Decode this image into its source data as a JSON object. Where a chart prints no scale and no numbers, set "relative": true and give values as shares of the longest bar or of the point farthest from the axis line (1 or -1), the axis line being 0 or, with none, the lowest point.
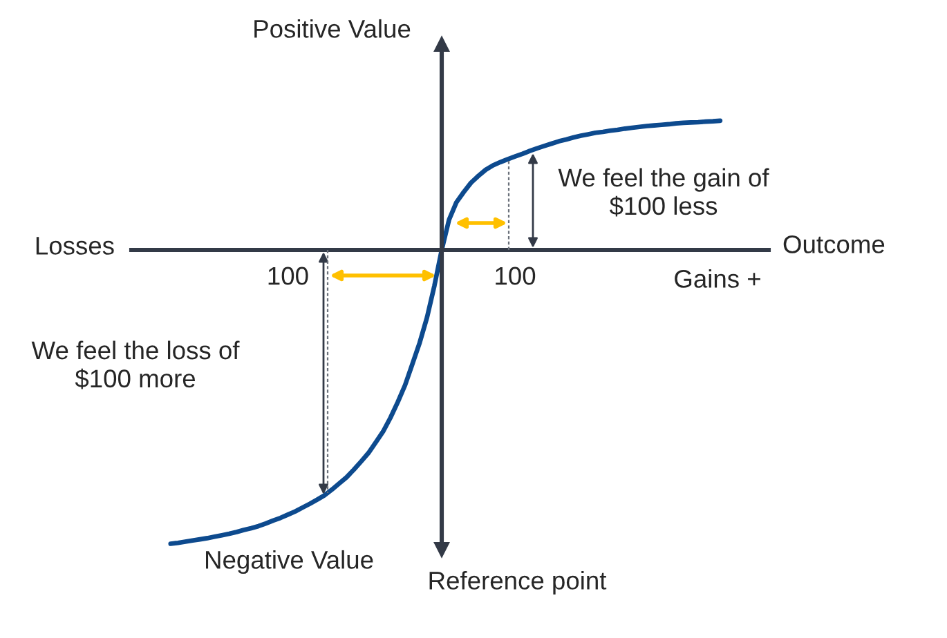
{
  "chart_data": {
    "type": "line",
    "relative": true,
    "xlabel": "Outcome",
    "ylabel": "Positive Value",
    "tick_labels": "x",
    "categories": [
      null,
      null,
      null,
      null,
      null,
      null,
      null,
      null,
      null,
      null,
      null,
      null,
      null,
      null,
      null,
      null,
      "100",
      null,
      null,
      null,
      null,
      null,
      null,
      null,
      null,
      null,
      null,
      null,
      null,
      null,
      null,
      null,
      null,
      null,
      null,
      null,
      null,
      null,
      null,
      null,
      null,
      null,
      null,
      null,
      null,
      null,
      null,
      "100",
      null,
      null,
      null,
      null,
      null,
      null,
      null,
      null,
      null,
      null,
      null,
      null,
      null,
      null,
      null,
      null,
      null,
      null,
      null,
      null,
      null,
      null,
      null,
      null,
      null,
      null,
      null,
      null
    ],
    "series": [
      {
        "color": "#0d4a8e",
        "values": [
          -1,
          -0.997,
          -0.993,
          -0.989,
          -0.985,
          -0.981,
          -0.976,
          -0.971,
          -0.966,
          -0.96,
          -0.953,
          -0.947,
          -0.94,
          -0.931,
          -0.921,
          -0.912,
          -0.901,
          -0.89,
          -0.877,
          -0.864,
          -0.85,
          -0.835,
          -0.816,
          -0.795,
          -0.774,
          -0.748,
          -0.72,
          -0.691,
          -0.655,
          -0.618,
          -0.571,
          -0.518,
          -0.46,
          -0.388,
          -0.315,
          -0.229,
          -0.122,
          0,
          0.103,
          0.162,
          0.197,
          0.229,
          0.252,
          0.273,
          0.288,
          0.299,
          0.309,
          0.318,
          0.327,
          0.337,
          0.346,
          0.354,
          0.362,
          0.37,
          0.376,
          0.383,
          0.389,
          0.394,
          0.399,
          0.402,
          0.406,
          0.409,
          0.413,
          0.416,
          0.419,
          0.422,
          0.424,
          0.426,
          0.428,
          0.431,
          0.433,
          0.434,
          0.435,
          0.437,
          0.438,
          0.44
        ]
      }
    ],
    "annotations": [
      "Losses",
      "Gains +",
      "Negative Value",
      "Reference point",
      "We feel the gain of\n$100 less",
      "We feel the loss of\n$100 more"
    ]
  }
}
